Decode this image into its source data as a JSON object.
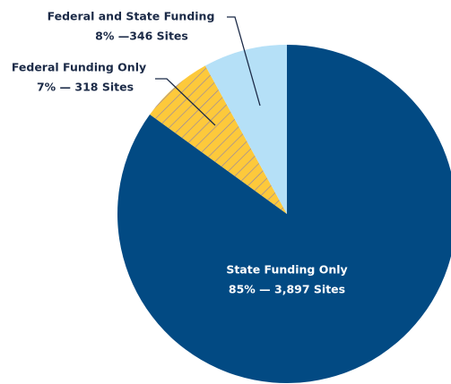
{
  "chart_data": {
    "type": "pie",
    "categories": [
      "State Funding Only",
      "Federal Funding Only",
      "Federal and State Funding"
    ],
    "values": [
      85,
      7,
      8
    ],
    "value_labels": [
      "85% — 3,897 Sites",
      "7% — 318 Sites",
      "8% —346 Sites"
    ],
    "colors": [
      "#024a83",
      "#fdc93b",
      "#b5e0f7"
    ],
    "hatched": [
      false,
      true,
      false
    ]
  }
}
